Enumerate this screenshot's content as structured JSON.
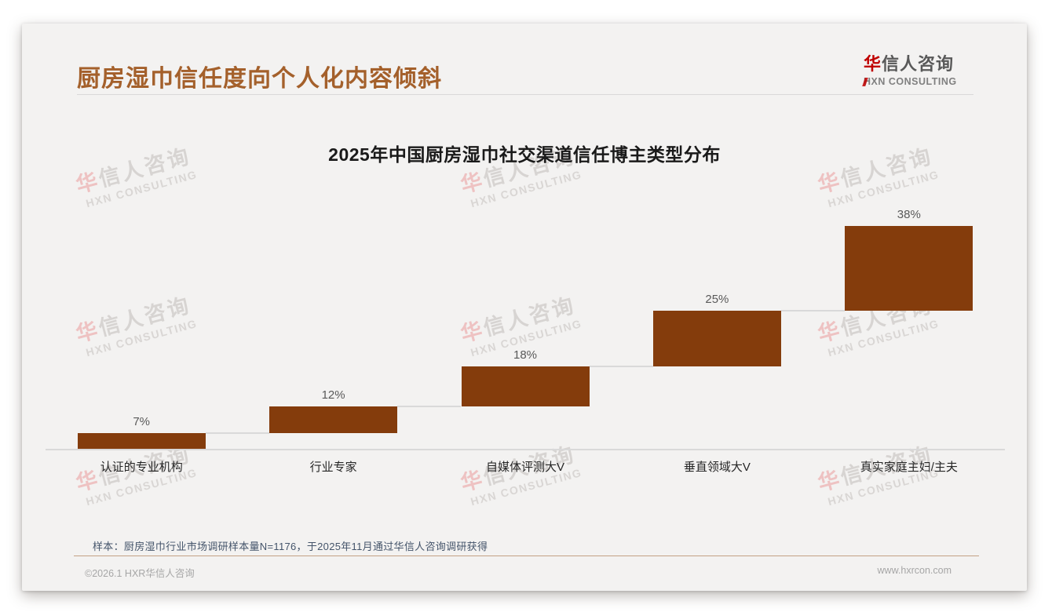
{
  "header": {
    "title": "厨房湿巾信任度向个人化内容倾斜",
    "logo": {
      "zh_first": "华",
      "zh_rest": "信人咨询",
      "en": "HXN CONSULTING"
    }
  },
  "chart_data": {
    "type": "bar",
    "subtype": "waterfall",
    "title": "2025年中国厨房湿巾社交渠道信任博主类型分布",
    "categories": [
      "认证的专业机构",
      "行业专家",
      "自媒体评测大V",
      "垂直领域大V",
      "真实家庭主妇/主夫"
    ],
    "values": [
      7,
      12,
      18,
      25,
      38
    ],
    "value_labels": [
      "7%",
      "12%",
      "18%",
      "25%",
      "38%"
    ],
    "cumulative": [
      7,
      19,
      37,
      62,
      100
    ],
    "unit": "%",
    "ylim": [
      0,
      100
    ],
    "legend": "none",
    "grid": "off",
    "bar_color": "#843C0C",
    "connector_color": "#D9D9D9",
    "value_label_color": "#595959"
  },
  "watermark": {
    "zh_first": "华",
    "zh_rest": "信人咨询",
    "en": "HXN CONSULTING"
  },
  "footnote": "样本：厨房湿巾行业市场调研样本量N=1176，于2025年11月通过华信人咨询调研获得",
  "footer": {
    "left": "©2026.1 HXR华信人咨询",
    "right": "www.hxrcon.com"
  },
  "colors": {
    "title_brown": "#A4602B",
    "bar_brown": "#843C0C",
    "logo_red": "#C00000",
    "footnote_slate": "#44546A"
  }
}
